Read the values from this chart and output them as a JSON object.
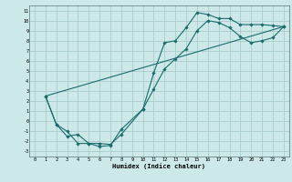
{
  "title": "",
  "xlabel": "Humidex (Indice chaleur)",
  "bg_color": "#cce8e8",
  "grid_color": "#aacccc",
  "line_color": "#1a6b6b",
  "xlim": [
    -0.5,
    23.5
  ],
  "ylim": [
    -3.5,
    11.5
  ],
  "xticks": [
    0,
    1,
    2,
    3,
    4,
    5,
    6,
    7,
    8,
    9,
    10,
    11,
    12,
    13,
    14,
    15,
    16,
    17,
    18,
    19,
    20,
    21,
    22,
    23
  ],
  "yticks": [
    -3,
    -2,
    -1,
    0,
    1,
    2,
    3,
    4,
    5,
    6,
    7,
    8,
    9,
    10,
    11
  ],
  "curve1_x": [
    1,
    2,
    3,
    4,
    5,
    6,
    7,
    8,
    10,
    11,
    12,
    13,
    14,
    15,
    16,
    17,
    18,
    19,
    20,
    21,
    22,
    23
  ],
  "curve1_y": [
    2.5,
    -0.3,
    -1.0,
    -2.2,
    -2.2,
    -2.5,
    -2.4,
    -0.8,
    1.2,
    4.8,
    7.8,
    8.0,
    9.3,
    10.8,
    10.6,
    10.2,
    10.2,
    9.6,
    9.6,
    9.6,
    9.5,
    9.4
  ],
  "curve2_x": [
    1,
    2,
    3,
    4,
    5,
    6,
    7,
    8,
    10,
    11,
    12,
    13,
    14,
    15,
    16,
    17,
    18,
    19,
    20,
    21,
    22,
    23
  ],
  "curve2_y": [
    2.5,
    -0.3,
    -1.5,
    -1.3,
    -2.2,
    -2.2,
    -2.3,
    -1.3,
    1.2,
    3.2,
    5.2,
    6.2,
    7.2,
    9.0,
    10.0,
    9.8,
    9.3,
    8.4,
    7.8,
    8.0,
    8.3,
    9.4
  ],
  "curve3_x": [
    1,
    23
  ],
  "curve3_y": [
    2.5,
    9.4
  ]
}
